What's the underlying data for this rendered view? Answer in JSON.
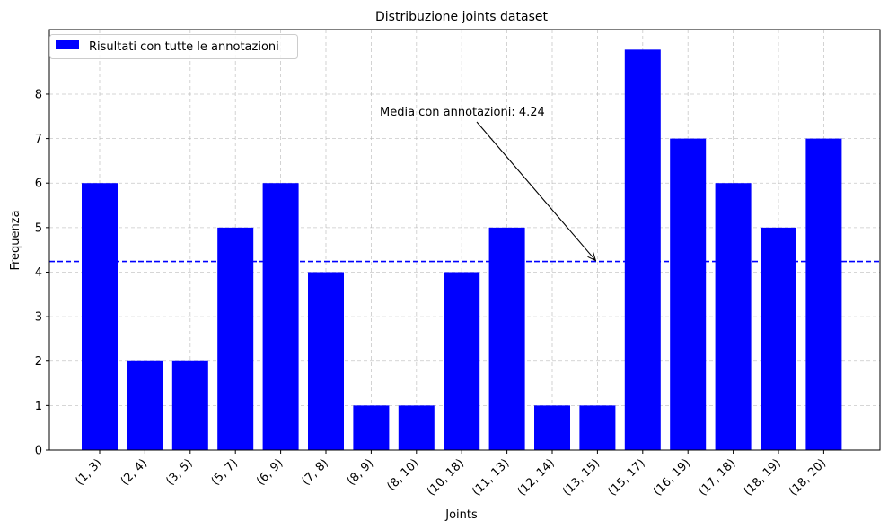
{
  "chart_data": {
    "type": "bar",
    "title": "Distribuzione joints dataset",
    "xlabel": "Joints",
    "ylabel": "Frequenza",
    "categories": [
      "(1, 3)",
      "(2, 4)",
      "(3, 5)",
      "(5, 7)",
      "(6, 9)",
      "(7, 8)",
      "(8, 9)",
      "(8, 10)",
      "(10, 18)",
      "(11, 13)",
      "(12, 14)",
      "(13, 15)",
      "(15, 17)",
      "(16, 19)",
      "(17, 18)",
      "(18, 19)",
      "(18, 20)"
    ],
    "series": [
      {
        "name": "Risultati con tutte le annotazioni",
        "color": "#0000ff",
        "values": [
          6,
          2,
          2,
          5,
          6,
          4,
          1,
          1,
          4,
          5,
          1,
          1,
          9,
          7,
          6,
          5,
          7
        ]
      }
    ],
    "yticks": [
      0,
      1,
      2,
      3,
      4,
      5,
      6,
      7,
      8
    ],
    "ylim": [
      0,
      9.45
    ],
    "grid": true,
    "legend_position": "top-left",
    "mean_line": {
      "value": 4.24,
      "color": "#0000ff",
      "style": "dashed"
    },
    "annotation": {
      "text": "Media con annotazioni: 4.24",
      "target_category_index": 11,
      "target_value": 4.24
    }
  }
}
